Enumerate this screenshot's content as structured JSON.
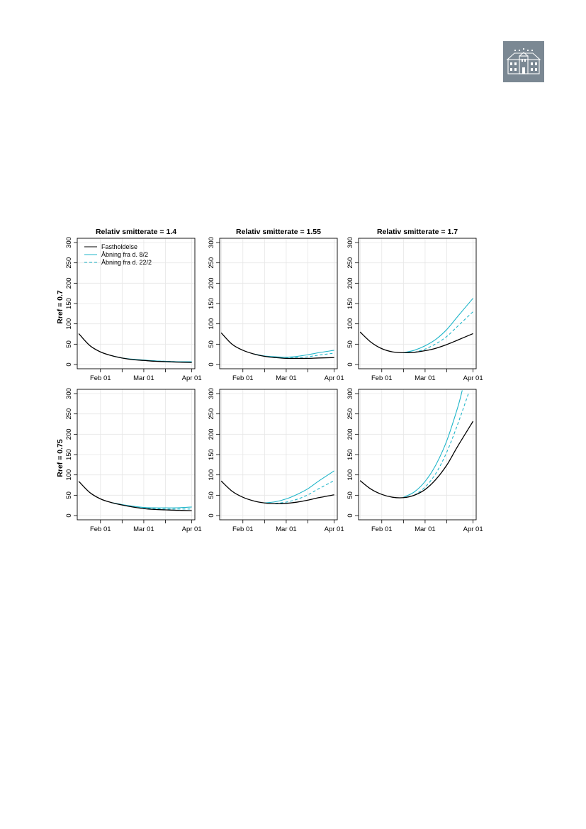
{
  "colors": {
    "fastholdelse": "#000000",
    "abning_8_2": "#1fb5c9",
    "abning_22_2": "#1fb5c9",
    "grid": "#e6e6e6",
    "logo_bg": "#7b8893"
  },
  "logo": {
    "icon": "building-logo-icon"
  },
  "chart_data": {
    "type": "line",
    "layout": "2x3 grid of small multiples",
    "x_axis_type": "date",
    "xlim": [
      "2021-01-17",
      "2021-04-03"
    ],
    "ylim": [
      0,
      300
    ],
    "x_ticks": [
      {
        "date": "2021-02-01",
        "label": "Feb 01"
      },
      {
        "date": "2021-03-01",
        "label": "Mar 01"
      },
      {
        "date": "2021-04-01",
        "label": "Apr 01"
      }
    ],
    "y_ticks": [
      0,
      50,
      100,
      150,
      200,
      250,
      300
    ],
    "grid": true,
    "legend": {
      "placement": "top-left",
      "panel": 0,
      "entries": [
        {
          "label": "Fastholdelse",
          "series": "fastholdelse",
          "style": "solid"
        },
        {
          "label": "Åbning fra d. 8/2",
          "series": "abning_8_2",
          "style": "solid"
        },
        {
          "label": "Åbning fra d. 22/2",
          "series": "abning_22_2",
          "style": "dashed"
        }
      ]
    },
    "col_titles": [
      "Relativ smitterate = 1.4",
      "Relativ smitterate = 1.55",
      "Relativ smitterate = 1.7"
    ],
    "row_labels": [
      "Rref = 0.7",
      "Rref = 0.75"
    ],
    "panels": [
      {
        "row": 0,
        "col": 0,
        "series": [
          {
            "key": "fastholdelse",
            "x": [
              "2021-01-18",
              "2021-01-25",
              "2021-02-01",
              "2021-02-08",
              "2021-02-15",
              "2021-02-22",
              "2021-03-01",
              "2021-03-08",
              "2021-03-15",
              "2021-03-22",
              "2021-04-01"
            ],
            "y": [
              76,
              47,
              31,
              22,
              16,
              12,
              10,
              8,
              7,
              6,
              5
            ]
          },
          {
            "key": "abning_8_2",
            "x": [
              "2021-02-08",
              "2021-02-15",
              "2021-02-22",
              "2021-03-01",
              "2021-03-08",
              "2021-03-15",
              "2021-03-22",
              "2021-04-01"
            ],
            "y": [
              22,
              16,
              13,
              11,
              9,
              8,
              7,
              7
            ]
          },
          {
            "key": "abning_22_2",
            "x": [
              "2021-02-22",
              "2021-03-01",
              "2021-03-08",
              "2021-03-15",
              "2021-03-22",
              "2021-04-01"
            ],
            "y": [
              12,
              10,
              9,
              8,
              7,
              6
            ]
          }
        ]
      },
      {
        "row": 0,
        "col": 1,
        "series": [
          {
            "key": "fastholdelse",
            "x": [
              "2021-01-18",
              "2021-01-25",
              "2021-02-01",
              "2021-02-08",
              "2021-02-15",
              "2021-02-22",
              "2021-03-01",
              "2021-03-08",
              "2021-03-15",
              "2021-03-22",
              "2021-04-01"
            ],
            "y": [
              78,
              50,
              35,
              26,
              20,
              17,
              15,
              15,
              15,
              16,
              17
            ]
          },
          {
            "key": "abning_8_2",
            "x": [
              "2021-02-08",
              "2021-02-15",
              "2021-02-22",
              "2021-03-01",
              "2021-03-08",
              "2021-03-15",
              "2021-03-22",
              "2021-04-01"
            ],
            "y": [
              26,
              21,
              19,
              18,
              20,
              24,
              29,
              35
            ]
          },
          {
            "key": "abning_22_2",
            "x": [
              "2021-02-22",
              "2021-03-01",
              "2021-03-08",
              "2021-03-15",
              "2021-03-22",
              "2021-04-01"
            ],
            "y": [
              17,
              16,
              17,
              19,
              23,
              28
            ]
          }
        ]
      },
      {
        "row": 0,
        "col": 2,
        "series": [
          {
            "key": "fastholdelse",
            "x": [
              "2021-01-18",
              "2021-01-25",
              "2021-02-01",
              "2021-02-08",
              "2021-02-15",
              "2021-02-22",
              "2021-03-01",
              "2021-03-08",
              "2021-03-15",
              "2021-03-22",
              "2021-04-01"
            ],
            "y": [
              80,
              55,
              39,
              31,
              29,
              30,
              34,
              40,
              49,
              60,
              76
            ]
          },
          {
            "key": "abning_8_2",
            "x": [
              "2021-02-15",
              "2021-02-22",
              "2021-03-01",
              "2021-03-08",
              "2021-03-15",
              "2021-03-22",
              "2021-04-01"
            ],
            "y": [
              29,
              35,
              46,
              62,
              86,
              118,
              163
            ]
          },
          {
            "key": "abning_22_2",
            "x": [
              "2021-02-22",
              "2021-03-01",
              "2021-03-08",
              "2021-03-15",
              "2021-03-22",
              "2021-04-01"
            ],
            "y": [
              30,
              38,
              51,
              69,
              94,
              130
            ]
          }
        ]
      },
      {
        "row": 1,
        "col": 0,
        "series": [
          {
            "key": "fastholdelse",
            "x": [
              "2021-01-18",
              "2021-01-25",
              "2021-02-01",
              "2021-02-08",
              "2021-02-15",
              "2021-02-22",
              "2021-03-01",
              "2021-03-08",
              "2021-03-15",
              "2021-03-22",
              "2021-04-01"
            ],
            "y": [
              84,
              57,
              41,
              32,
              26,
              21,
              17,
              15,
              14,
              13,
              12
            ]
          },
          {
            "key": "abning_8_2",
            "x": [
              "2021-02-08",
              "2021-02-15",
              "2021-02-22",
              "2021-03-01",
              "2021-03-08",
              "2021-03-15",
              "2021-03-22",
              "2021-04-01"
            ],
            "y": [
              32,
              27,
              23,
              20,
              19,
              19,
              19,
              21
            ]
          },
          {
            "key": "abning_22_2",
            "x": [
              "2021-02-22",
              "2021-03-01",
              "2021-03-08",
              "2021-03-15",
              "2021-03-22",
              "2021-04-01"
            ],
            "y": [
              21,
              18,
              17,
              16,
              16,
              16
            ]
          }
        ]
      },
      {
        "row": 1,
        "col": 1,
        "series": [
          {
            "key": "fastholdelse",
            "x": [
              "2021-01-18",
              "2021-01-25",
              "2021-02-01",
              "2021-02-08",
              "2021-02-15",
              "2021-02-22",
              "2021-03-01",
              "2021-03-08",
              "2021-03-15",
              "2021-03-22",
              "2021-04-01"
            ],
            "y": [
              85,
              60,
              45,
              36,
              31,
              29,
              30,
              33,
              38,
              44,
              51
            ]
          },
          {
            "key": "abning_8_2",
            "x": [
              "2021-02-15",
              "2021-02-22",
              "2021-03-01",
              "2021-03-08",
              "2021-03-15",
              "2021-03-22",
              "2021-04-01"
            ],
            "y": [
              31,
              34,
              41,
              52,
              66,
              85,
              110
            ]
          },
          {
            "key": "abning_22_2",
            "x": [
              "2021-02-22",
              "2021-03-01",
              "2021-03-08",
              "2021-03-15",
              "2021-03-22",
              "2021-04-01"
            ],
            "y": [
              30,
              33,
              40,
              51,
              66,
              86
            ]
          }
        ]
      },
      {
        "row": 1,
        "col": 2,
        "series": [
          {
            "key": "fastholdelse",
            "x": [
              "2021-01-18",
              "2021-01-25",
              "2021-02-01",
              "2021-02-08",
              "2021-02-15",
              "2021-02-22",
              "2021-03-01",
              "2021-03-08",
              "2021-03-15",
              "2021-03-22",
              "2021-04-01"
            ],
            "y": [
              86,
              65,
              52,
              45,
              44,
              50,
              64,
              89,
              124,
              170,
              232
            ]
          },
          {
            "key": "abning_8_2",
            "x": [
              "2021-02-15",
              "2021-02-22",
              "2021-03-01",
              "2021-03-08",
              "2021-03-15",
              "2021-03-22",
              "2021-03-25"
            ],
            "y": [
              45,
              58,
              84,
              125,
              184,
              265,
              308
            ]
          },
          {
            "key": "abning_22_2",
            "x": [
              "2021-02-22",
              "2021-03-01",
              "2021-03-08",
              "2021-03-15",
              "2021-03-22",
              "2021-03-29"
            ],
            "y": [
              50,
              70,
              104,
              156,
              224,
              300
            ]
          }
        ]
      }
    ]
  }
}
